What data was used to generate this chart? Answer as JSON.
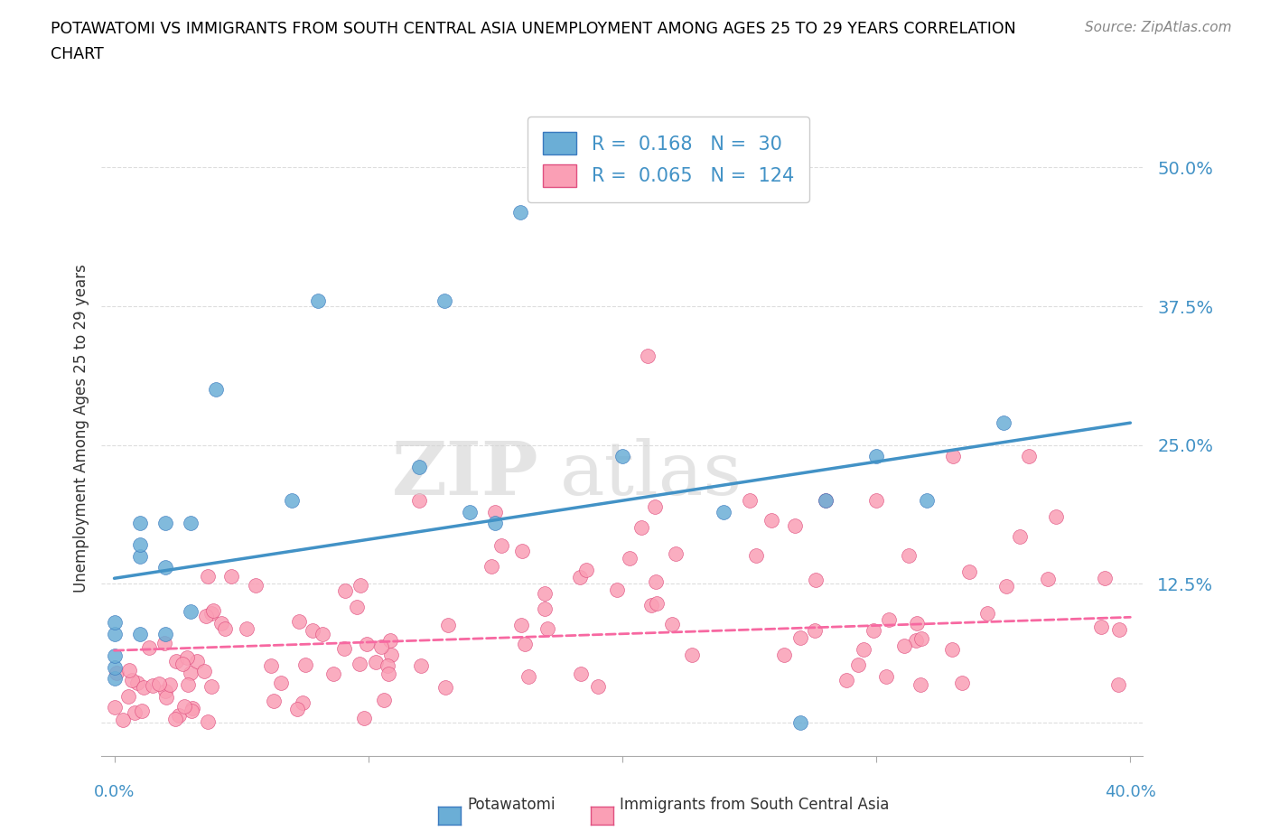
{
  "title_line1": "POTAWATOMI VS IMMIGRANTS FROM SOUTH CENTRAL ASIA UNEMPLOYMENT AMONG AGES 25 TO 29 YEARS CORRELATION",
  "title_line2": "CHART",
  "source": "Source: ZipAtlas.com",
  "ylabel": "Unemployment Among Ages 25 to 29 years",
  "legend_r1": "R =  0.168",
  "legend_n1": "N =  30",
  "legend_r2": "R =  0.065",
  "legend_n2": "N =  124",
  "color_blue": "#6baed6",
  "color_pink": "#fa9fb5",
  "color_blue_line": "#4292c6",
  "color_pink_line": "#f768a1",
  "color_gray_line": "#aaaaaa",
  "blue_trend_start": 0.13,
  "blue_trend_end": 0.27,
  "gray_trend_start": 0.065,
  "gray_trend_end": 0.095,
  "xmin": 0.0,
  "xmax": 0.4,
  "ymin": -0.03,
  "ymax": 0.56
}
